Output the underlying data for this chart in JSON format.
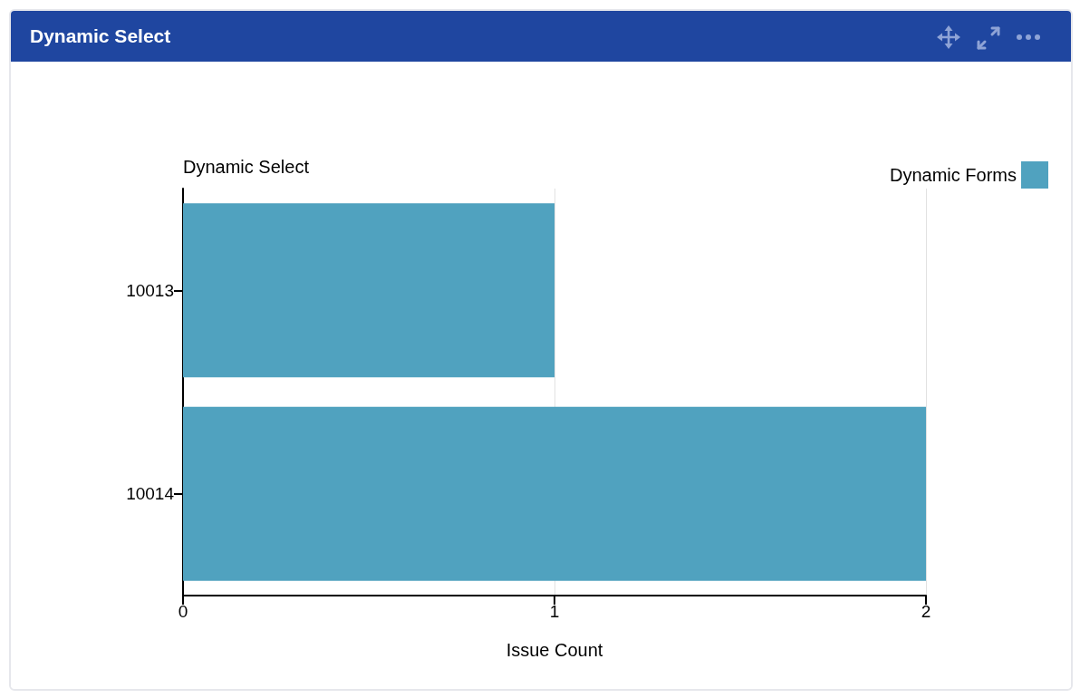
{
  "chart_data": {
    "type": "bar",
    "orientation": "horizontal",
    "title": "Dynamic Select",
    "ylabel": "Dynamic Select",
    "xlabel": "Issue Count",
    "categories": [
      "10013",
      "10014"
    ],
    "series": [
      {
        "name": "Dynamic Forms",
        "color": "#50a2bf",
        "values": [
          1,
          2
        ]
      }
    ],
    "xlim": [
      0,
      2
    ],
    "xticks": [
      0,
      1,
      2
    ],
    "grid": "x",
    "legend": "top right"
  }
}
